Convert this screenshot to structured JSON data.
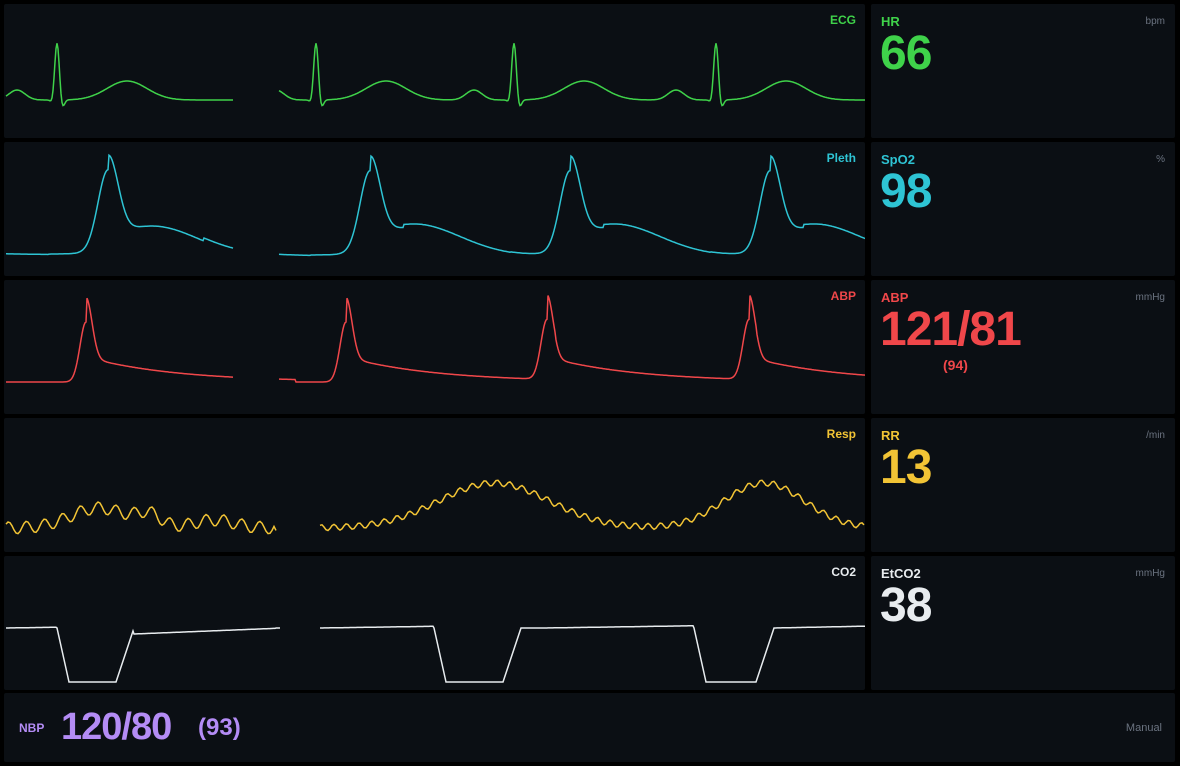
{
  "colors": {
    "ecg": "#3fd24a",
    "pleth": "#2ec4d4",
    "abp": "#f0474a",
    "resp": "#f2c435",
    "co2": "#e8ecef",
    "nbp": "#b48cf5",
    "unit": "#6b7380"
  },
  "waveforms": {
    "ecg": {
      "label": "ECG",
      "color_ref": "ecg"
    },
    "pleth": {
      "label": "Pleth",
      "color_ref": "pleth"
    },
    "abp": {
      "label": "ABP",
      "color_ref": "abp"
    },
    "resp": {
      "label": "Resp",
      "color_ref": "resp"
    },
    "co2": {
      "label": "CO2",
      "color_ref": "co2"
    }
  },
  "numerics": {
    "hr": {
      "label": "HR",
      "unit": "bpm",
      "value": "66"
    },
    "spo2": {
      "label": "SpO2",
      "unit": "%",
      "value": "98"
    },
    "abp": {
      "label": "ABP",
      "unit": "mmHg",
      "value": "121/81",
      "mean": "(94)"
    },
    "rr": {
      "label": "RR",
      "unit": "/min",
      "value": "13"
    },
    "etco2": {
      "label": "EtCO2",
      "unit": "mmHg",
      "value": "38"
    }
  },
  "nbp": {
    "label": "NBP",
    "value": "120/80",
    "mean": "(93)",
    "mode": "Manual"
  }
}
